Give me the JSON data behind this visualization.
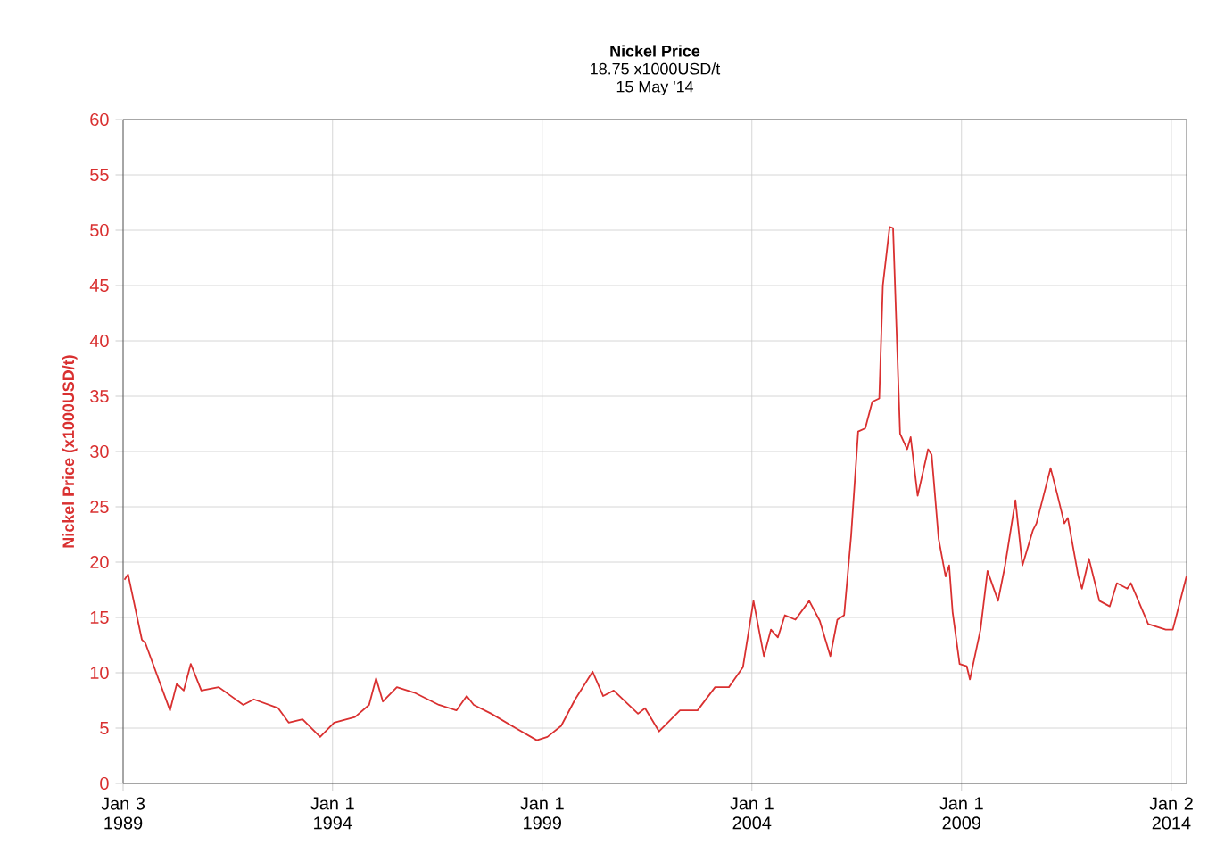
{
  "chart_data": {
    "type": "line",
    "title": "Nickel Price",
    "subtitle": "18.75 x1000USD/t",
    "annotations": [
      "15 May '14"
    ],
    "ylabel": "Nickel Price (x1000USD/t)",
    "xlim": [
      "1989-01-03",
      "2014-05-15"
    ],
    "xticks": [
      {
        "value": "1989-01-03",
        "label": "Jan 3 1989"
      },
      {
        "value": "1994-01-01",
        "label": "Jan 1 1994"
      },
      {
        "value": "1999-01-01",
        "label": "Jan 1 1999"
      },
      {
        "value": "2004-01-01",
        "label": "Jan 1 2004"
      },
      {
        "value": "2009-01-01",
        "label": "Jan 1 2009"
      },
      {
        "value": "2014-01-02",
        "label": "Jan 2 2014"
      }
    ],
    "ylim": [
      0,
      60
    ],
    "yticks": [
      0,
      5,
      10,
      15,
      20,
      25,
      30,
      35,
      40,
      45,
      50,
      55,
      60
    ],
    "grid": true,
    "marker": "none",
    "line_style": "solid",
    "x": [
      "1989-01-15",
      "1989-02-15",
      "1989-06-15",
      "1989-07-15",
      "1990-02-15",
      "1990-04-15",
      "1990-06-15",
      "1990-08-15",
      "1990-11-15",
      "1991-04-15",
      "1991-11-15",
      "1992-02-15",
      "1992-09-15",
      "1992-12-15",
      "1993-04-15",
      "1993-09-15",
      "1994-01-15",
      "1994-07-15",
      "1994-11-15",
      "1995-01-15",
      "1995-03-15",
      "1995-07-15",
      "1995-12-15",
      "1996-07-15",
      "1996-12-15",
      "1997-03-15",
      "1997-05-15",
      "1997-10-15",
      "1998-05-15",
      "1998-11-15",
      "1999-02-15",
      "1999-06-15",
      "1999-10-15",
      "2000-03-15",
      "2000-06-15",
      "2000-09-15",
      "2001-04-15",
      "2001-06-15",
      "2001-10-15",
      "2002-04-15",
      "2002-09-15",
      "2003-02-15",
      "2003-06-15",
      "2003-10-15",
      "2004-01-15",
      "2004-04-15",
      "2004-06-15",
      "2004-08-15",
      "2004-10-15",
      "2005-01-15",
      "2005-05-15",
      "2005-08-15",
      "2005-11-15",
      "2006-01-15",
      "2006-03-15",
      "2006-05-15",
      "2006-07-15",
      "2006-09-15",
      "2006-11-15",
      "2007-01-15",
      "2007-02-15",
      "2007-04-15",
      "2007-05-15",
      "2007-07-15",
      "2007-09-15",
      "2007-10-15",
      "2007-12-15",
      "2008-03-15",
      "2008-04-15",
      "2008-06-15",
      "2008-08-15",
      "2008-09-15",
      "2008-10-15",
      "2008-12-15",
      "2009-02-15",
      "2009-03-15",
      "2009-06-15",
      "2009-08-15",
      "2009-11-15",
      "2010-01-15",
      "2010-04-15",
      "2010-06-15",
      "2010-09-15",
      "2010-10-15",
      "2011-02-15",
      "2011-04-15",
      "2011-06-15",
      "2011-07-15",
      "2011-10-15",
      "2011-11-15",
      "2012-01-15",
      "2012-04-15",
      "2012-07-15",
      "2012-09-15",
      "2012-12-15",
      "2013-01-15",
      "2013-06-15",
      "2013-11-15",
      "2014-01-15",
      "2014-05-15"
    ],
    "series": [
      {
        "color": "#d93030",
        "values": [
          18.4,
          18.9,
          13,
          12.7,
          6.6,
          9,
          8.4,
          10.8,
          8.4,
          8.7,
          7.1,
          7.6,
          6.8,
          5.5,
          5.8,
          4.2,
          5.5,
          6,
          7.1,
          9.5,
          7.4,
          8.7,
          8.2,
          7.1,
          6.6,
          7.9,
          7.1,
          6.3,
          5,
          3.9,
          4.2,
          5.2,
          7.6,
          10.1,
          7.9,
          8.4,
          6.3,
          6.8,
          4.7,
          6.6,
          6.6,
          8.7,
          8.7,
          10.5,
          16.5,
          11.5,
          13.9,
          13.2,
          15.2,
          14.8,
          16.5,
          14.7,
          11.5,
          14.8,
          15.2,
          22.4,
          31.8,
          32.1,
          34.5,
          34.8,
          45,
          50.3,
          50.2,
          31.6,
          30.2,
          31.3,
          26,
          30.2,
          29.7,
          22.1,
          18.7,
          19.7,
          15.5,
          10.8,
          10.6,
          9.4,
          13.9,
          19.2,
          16.5,
          19.7,
          25.6,
          19.7,
          22.9,
          23.5,
          28.5,
          26.1,
          23.5,
          24,
          18.7,
          17.6,
          20.3,
          16.5,
          16,
          18.1,
          17.6,
          18.1,
          14.4,
          13.9,
          13.9,
          18.75
        ]
      }
    ]
  }
}
